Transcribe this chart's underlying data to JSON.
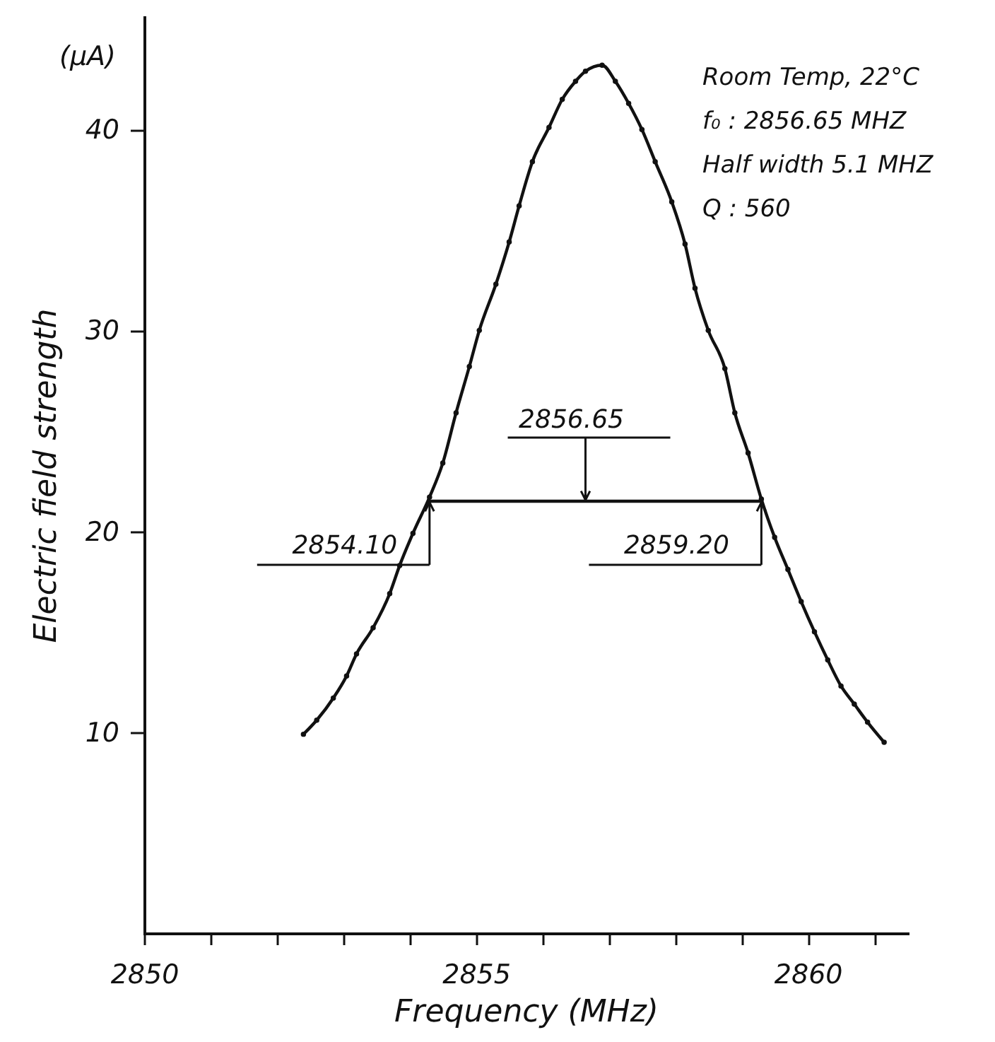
{
  "chart_data": {
    "type": "line",
    "xlabel": "Frequency  (MHz)",
    "ylabel": "Electric  field  strength",
    "annotations": [
      "(μA)",
      "Room Temp, 22°C",
      "f₀ : 2856.65 MHZ",
      "Half width 5.1 MHZ",
      "Q : 560",
      {
        "text": "2856.65",
        "x": 2856.65,
        "y": 21.5
      },
      {
        "text": "2854.10",
        "x": 2854.3,
        "y": 21.5
      },
      {
        "text": "2859.20",
        "x": 2859.3,
        "y": 21.5
      }
    ],
    "xlim": [
      2850,
      2861.5
    ],
    "ylim": [
      0,
      45.6
    ],
    "xticks": [
      2850,
      {
        "value": 2851,
        "label": null
      },
      {
        "value": 2852,
        "label": null
      },
      {
        "value": 2853,
        "label": null
      },
      {
        "value": 2854,
        "label": null
      },
      2855,
      {
        "value": 2856,
        "label": null
      },
      {
        "value": 2857,
        "label": null
      },
      {
        "value": 2858,
        "label": null
      },
      {
        "value": 2859,
        "label": null
      },
      2860,
      {
        "value": 2861,
        "label": null
      }
    ],
    "yticks": [
      10,
      20,
      30,
      40
    ],
    "grid": false,
    "marker": "circle",
    "line_style": "solid",
    "series": [
      {
        "color": "#111111",
        "x": [
          2852.4,
          2852.6,
          2852.85,
          2853.05,
          2853.2,
          2853.45,
          2853.7,
          2853.85,
          2854.05,
          2854.3,
          2854.5,
          2854.7,
          2854.9,
          2855.05,
          2855.3,
          2855.5,
          2855.65,
          2855.85,
          2856.1,
          2856.3,
          2856.5,
          2856.65,
          2856.9,
          2857.1,
          2857.3,
          2857.5,
          2857.7,
          2857.95,
          2858.15,
          2858.3,
          2858.5,
          2858.75,
          2858.9,
          2859.1,
          2859.3,
          2859.5,
          2859.7,
          2859.9,
          2860.1,
          2860.3,
          2860.5,
          2860.7,
          2860.9,
          2861.15
        ],
        "values": [
          9.9,
          10.6,
          11.7,
          12.8,
          13.9,
          15.2,
          16.9,
          18.3,
          19.9,
          21.7,
          23.4,
          25.9,
          28.2,
          30.0,
          32.3,
          34.4,
          36.2,
          38.4,
          40.1,
          41.5,
          42.4,
          42.9,
          43.2,
          42.4,
          41.3,
          40.0,
          38.4,
          36.4,
          34.3,
          32.1,
          30.0,
          28.1,
          25.9,
          23.9,
          21.6,
          19.7,
          18.1,
          16.5,
          15.0,
          13.6,
          12.3,
          11.4,
          10.5,
          9.5
        ]
      },
      {
        "color": "#111111",
        "type": "line",
        "marker": "none",
        "x": [
          2854.3,
          2859.3
        ],
        "values": [
          21.5,
          21.5
        ]
      }
    ]
  }
}
